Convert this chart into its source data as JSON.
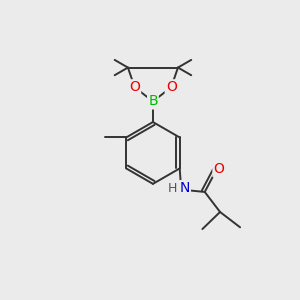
{
  "bg_color": "#ebebeb",
  "bond_color": "#333333",
  "atom_colors": {
    "B": "#00bb00",
    "O": "#ee0000",
    "N": "#0000cc",
    "H": "#555555"
  },
  "figsize": [
    3.0,
    3.0
  ],
  "dpi": 100
}
